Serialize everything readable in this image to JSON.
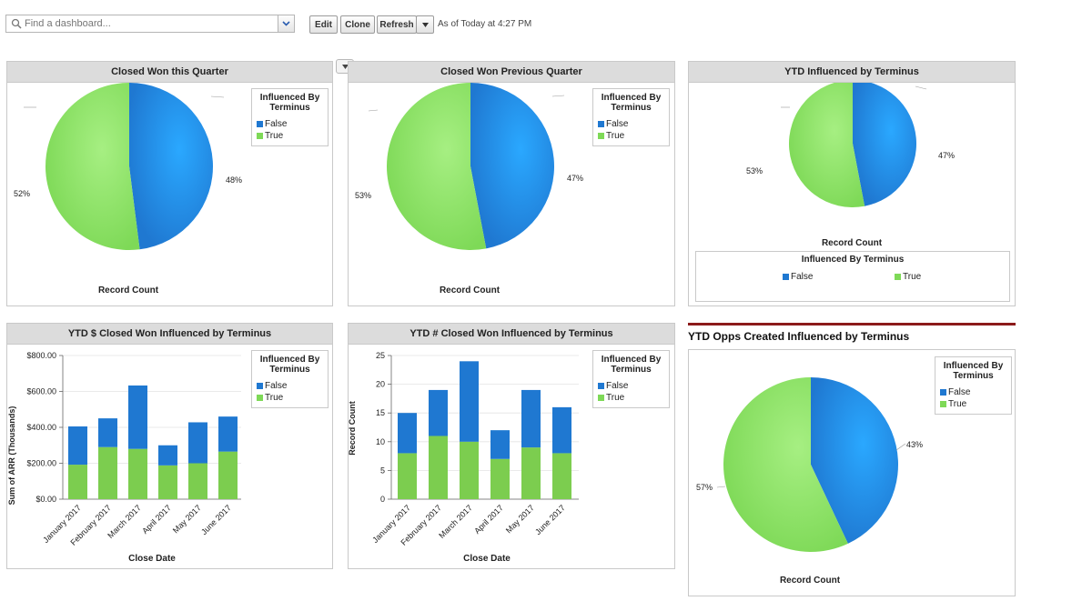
{
  "toolbar": {
    "search_placeholder": "Find a dashboard...",
    "edit_label": "Edit",
    "clone_label": "Clone",
    "refresh_label": "Refresh",
    "as_of": "As of Today at 4:27 PM"
  },
  "colors": {
    "false": "#1f78d1",
    "true": "#7ed957",
    "header": "#dcdcdc"
  },
  "legend": {
    "title_line1": "Influenced By",
    "title_line2": "Terminus",
    "title_single": "Influenced By Terminus",
    "false_label": "False",
    "true_label": "True"
  },
  "panels": {
    "p1": {
      "title": "Closed Won this Quarter",
      "axis": "Record Count",
      "false_pct": "48%",
      "true_pct": "52%"
    },
    "p2": {
      "title": "Closed Won Previous Quarter",
      "axis": "Record Count",
      "false_pct": "47%",
      "true_pct": "53%"
    },
    "p3": {
      "title": "YTD Influenced by Terminus",
      "axis": "Record Count",
      "false_pct": "47%",
      "true_pct": "53%"
    },
    "p4": {
      "title": "YTD $ Closed Won Influenced by Terminus",
      "ylabel": "Sum of ARR (Thousands)",
      "xlabel": "Close Date"
    },
    "p5": {
      "title": "YTD # Closed Won Influenced by Terminus",
      "ylabel": "Record Count",
      "xlabel": "Close Date"
    },
    "p6": {
      "title": "YTD Opps Created Influenced by Terminus",
      "axis": "Record Count",
      "false_pct": "43%",
      "true_pct": "57%"
    }
  },
  "chart_data": [
    {
      "type": "pie",
      "title": "Closed Won this Quarter",
      "labels": [
        "False",
        "True"
      ],
      "values": [
        48,
        52
      ],
      "legend": "top-right"
    },
    {
      "type": "pie",
      "title": "Closed Won Previous Quarter",
      "labels": [
        "False",
        "True"
      ],
      "values": [
        47,
        53
      ],
      "legend": "top-right"
    },
    {
      "type": "pie",
      "title": "YTD Influenced by Terminus",
      "labels": [
        "False",
        "True"
      ],
      "values": [
        47,
        53
      ],
      "legend": "bottom"
    },
    {
      "type": "bar",
      "stacked": true,
      "title": "YTD $ Closed Won Influenced by Terminus",
      "categories": [
        "January 2017",
        "February 2017",
        "March 2017",
        "April 2017",
        "May 2017",
        "June 2017"
      ],
      "series": [
        {
          "name": "True",
          "values": [
            192,
            290,
            280,
            188,
            200,
            265
          ]
        },
        {
          "name": "False",
          "values": [
            213,
            160,
            353,
            112,
            228,
            195
          ]
        }
      ],
      "xlabel": "Close Date",
      "ylabel": "Sum of ARR (Thousands)",
      "ylim": [
        0,
        800
      ],
      "yticks": [
        "$0.00",
        "$200.00",
        "$400.00",
        "$600.00",
        "$800.00"
      ],
      "grid": true,
      "legend": "top-right"
    },
    {
      "type": "bar",
      "stacked": true,
      "title": "YTD # Closed Won Influenced by Terminus",
      "categories": [
        "January 2017",
        "February 2017",
        "March 2017",
        "April 2017",
        "May 2017",
        "June 2017"
      ],
      "series": [
        {
          "name": "True",
          "values": [
            8,
            11,
            10,
            7,
            9,
            8
          ]
        },
        {
          "name": "False",
          "values": [
            7,
            8,
            14,
            5,
            10,
            8
          ]
        }
      ],
      "xlabel": "Close Date",
      "ylabel": "Record Count",
      "ylim": [
        0,
        25
      ],
      "yticks": [
        "0",
        "5",
        "10",
        "15",
        "20",
        "25"
      ],
      "grid": true,
      "legend": "top-right"
    },
    {
      "type": "pie",
      "title": "YTD Opps Created Influenced by Terminus",
      "labels": [
        "False",
        "True"
      ],
      "values": [
        43,
        57
      ],
      "legend": "top-right"
    }
  ]
}
